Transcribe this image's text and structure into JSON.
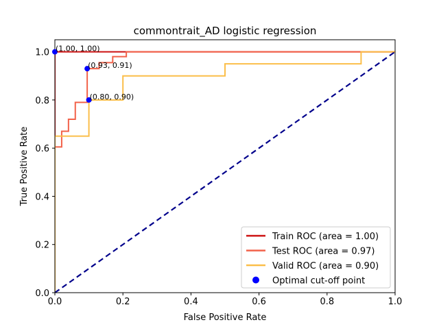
{
  "chart_data": {
    "type": "line",
    "title": "commontrait_AD logistic regression",
    "xlabel": "False Positive Rate",
    "ylabel": "True Positive Rate",
    "xlim": [
      0,
      1
    ],
    "ylim": [
      0,
      1.05
    ],
    "xticks": [
      "0.0",
      "0.2",
      "0.4",
      "0.6",
      "0.8",
      "1.0"
    ],
    "yticks": [
      "0.0",
      "0.2",
      "0.4",
      "0.6",
      "0.8",
      "1.0"
    ],
    "grid": false,
    "legend_position": "lower-right",
    "series": [
      {
        "name": "Train ROC (area = 1.00)",
        "color": "#cc1111",
        "x": [
          0,
          0,
          1
        ],
        "y": [
          0,
          1,
          1
        ]
      },
      {
        "name": "Test ROC (area = 0.97)",
        "color": "#f26149",
        "x": [
          0,
          0,
          0.02,
          0.02,
          0.04,
          0.04,
          0.06,
          0.06,
          0.095,
          0.095,
          0.13,
          0.13,
          0.17,
          0.17,
          0.21,
          0.21,
          1
        ],
        "y": [
          0,
          0.605,
          0.605,
          0.67,
          0.67,
          0.72,
          0.72,
          0.79,
          0.79,
          0.93,
          0.93,
          0.955,
          0.955,
          0.98,
          0.98,
          1,
          1
        ]
      },
      {
        "name": "Valid ROC (area = 0.90)",
        "color": "#fbbe49",
        "x": [
          0,
          0,
          0.1,
          0.1,
          0.2,
          0.2,
          0.5,
          0.5,
          0.9,
          0.9,
          1
        ],
        "y": [
          0,
          0.65,
          0.65,
          0.8,
          0.8,
          0.9,
          0.9,
          0.95,
          0.95,
          1,
          1
        ]
      }
    ],
    "diagonal": {
      "color": "#00008b",
      "x": [
        0,
        1
      ],
      "y": [
        0,
        1
      ]
    },
    "optimal_points": {
      "name": "Optimal cut-off point",
      "color": "#0000ff",
      "points": [
        {
          "x": 0.0,
          "y": 1.0,
          "label": "(1.00, 1.00)"
        },
        {
          "x": 0.095,
          "y": 0.93,
          "label": "(0.93, 0.91)"
        },
        {
          "x": 0.1,
          "y": 0.8,
          "label": "(0.80, 0.90)"
        }
      ]
    }
  }
}
